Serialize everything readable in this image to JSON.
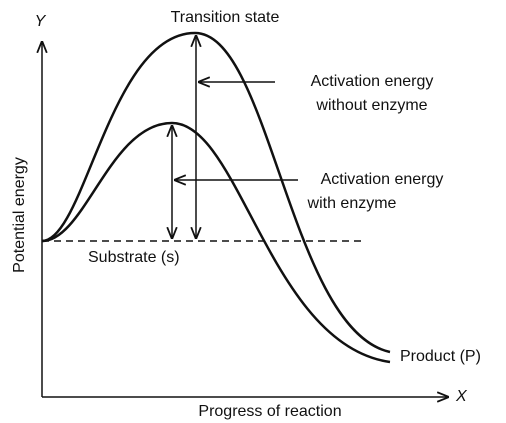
{
  "axes": {
    "y_letter": "Y",
    "x_letter": "X",
    "y_label": "Potential energy",
    "x_label": "Progress of reaction"
  },
  "labels": {
    "transition_state": "Transition state",
    "without_enzyme": [
      "Activation energy",
      "without enzyme"
    ],
    "with_enzyme": [
      "Activation energy",
      "with enzyme"
    ],
    "substrate": "Substrate (s)",
    "product": "Product (P)"
  }
}
